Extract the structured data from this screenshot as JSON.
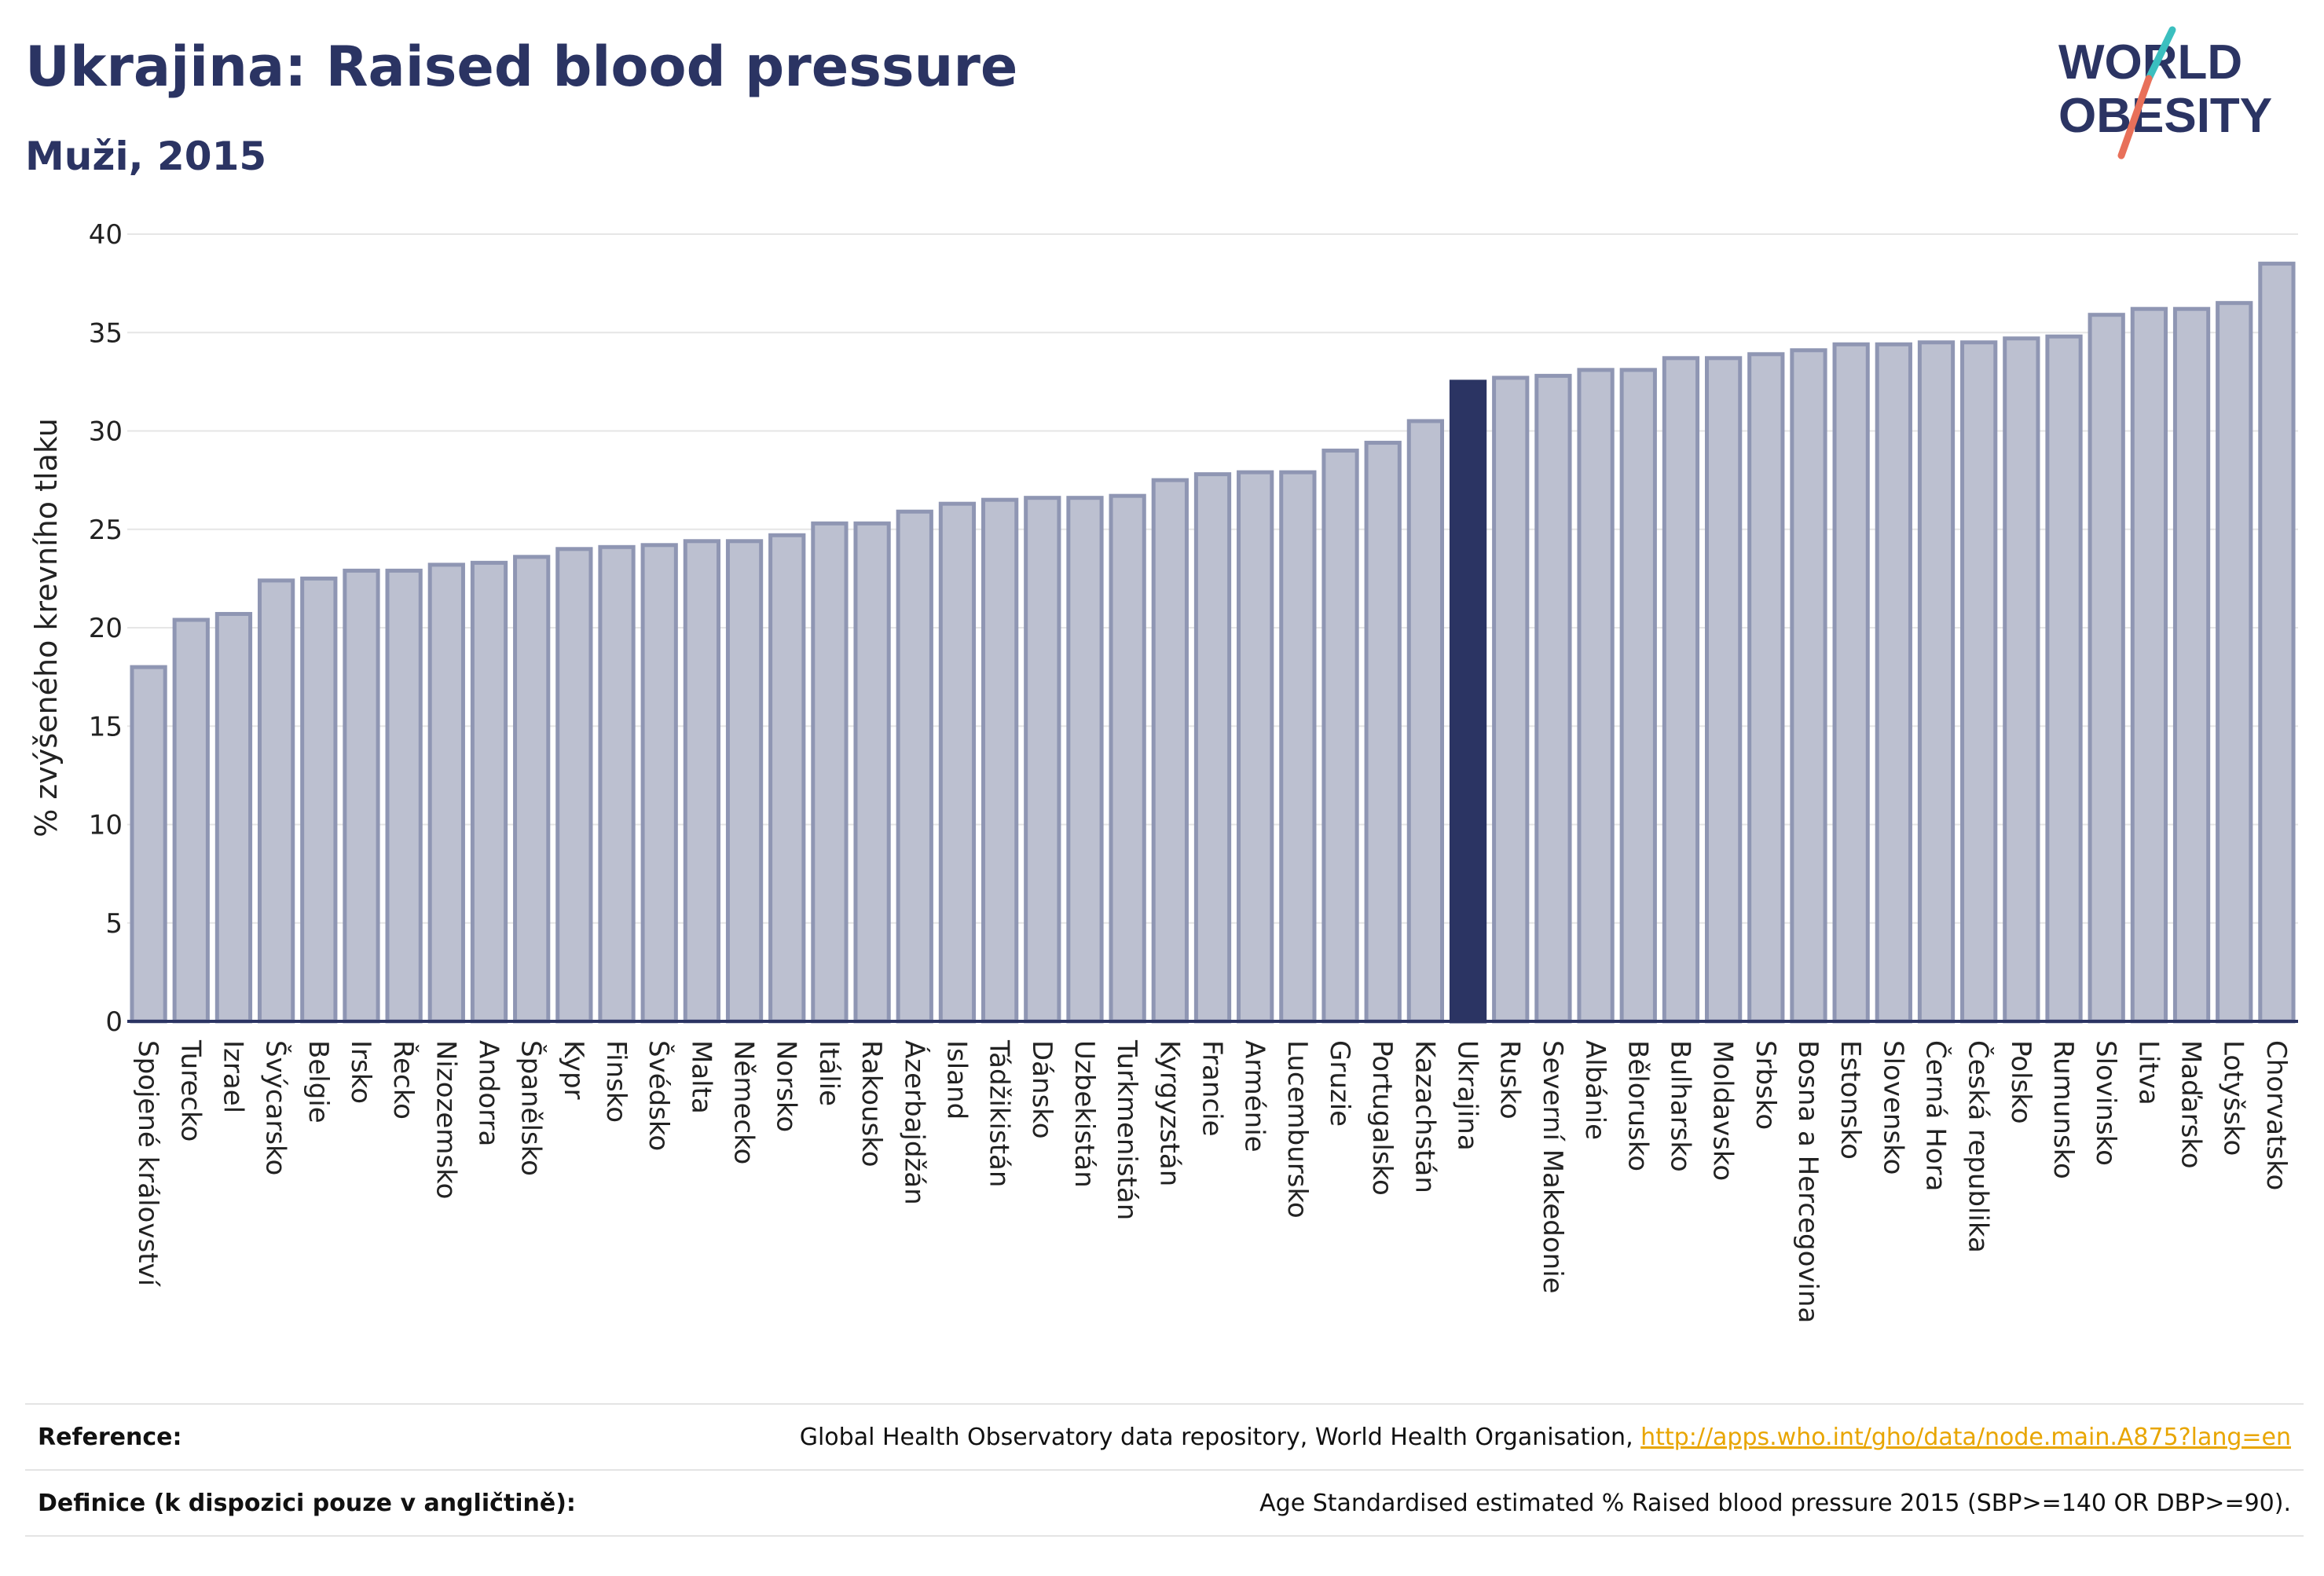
{
  "title": "Ukrajina: Raised blood pressure",
  "subtitle": "Muži, 2015",
  "logo": {
    "line1": "WORLD",
    "line2": "OBESITY",
    "text_color": "#2b3463",
    "slash_colors": [
      "#3bbfbf",
      "#e8705a"
    ]
  },
  "colors": {
    "bar": "#bcc0d0",
    "bar_border": "#8f96b3",
    "highlight": "#2b3463",
    "grid": "#e6e6e6",
    "axis": "#2b3463"
  },
  "chart_data": {
    "type": "bar",
    "ylabel": "% zvýšeného krevního tlaku",
    "xlabel": "",
    "ylim": [
      0,
      40
    ],
    "yticks": [
      0,
      5,
      10,
      15,
      20,
      25,
      30,
      35,
      40
    ],
    "grid": true,
    "highlight": "Ukrajina",
    "categories": [
      "Spojené království",
      "Turecko",
      "Izrael",
      "Švýcarsko",
      "Belgie",
      "Irsko",
      "Řecko",
      "Nizozemsko",
      "Andorra",
      "Španělsko",
      "Kypr",
      "Finsko",
      "Švédsko",
      "Malta",
      "Německo",
      "Norsko",
      "Itálie",
      "Rakousko",
      "Ázerbajdžán",
      "Island",
      "Tádžikistán",
      "Dánsko",
      "Uzbekistán",
      "Turkmenistán",
      "Kyrgyzstán",
      "Francie",
      "Arménie",
      "Lucembursko",
      "Gruzie",
      "Portugalsko",
      "Kazachstán",
      "Ukrajina",
      "Rusko",
      "Severní Makedonie",
      "Albánie",
      "Bělorusko",
      "Bulharsko",
      "Moldavsko",
      "Srbsko",
      "Bosna a Hercegovina",
      "Estonsko",
      "Slovensko",
      "Černá Hora",
      "Česká republika",
      "Polsko",
      "Rumunsko",
      "Slovinsko",
      "Litva",
      "Maďarsko",
      "Lotyšsko",
      "Chorvatsko"
    ],
    "values": [
      18.0,
      20.4,
      20.7,
      22.4,
      22.5,
      22.9,
      22.9,
      23.2,
      23.3,
      23.6,
      24.0,
      24.1,
      24.2,
      24.4,
      24.4,
      24.7,
      25.3,
      25.3,
      25.9,
      26.3,
      26.5,
      26.6,
      26.6,
      26.7,
      27.5,
      27.8,
      27.9,
      27.9,
      29.0,
      29.4,
      30.5,
      32.5,
      32.7,
      32.8,
      33.1,
      33.1,
      33.7,
      33.7,
      33.9,
      34.1,
      34.4,
      34.4,
      34.5,
      34.5,
      34.7,
      34.8,
      35.9,
      36.2,
      36.2,
      36.5,
      38.5
    ]
  },
  "footer": {
    "reference_label": "Reference:",
    "reference_text": "Global Health Observatory data repository, World Health Organisation, ",
    "reference_link": "http://apps.who.int/gho/data/node.main.A875?lang=en",
    "definition_label": "Definice (k dispozici pouze v angličtině):",
    "definition_text": "Age Standardised estimated % Raised blood pressure 2015 (SBP>=140 OR DBP>=90)."
  }
}
